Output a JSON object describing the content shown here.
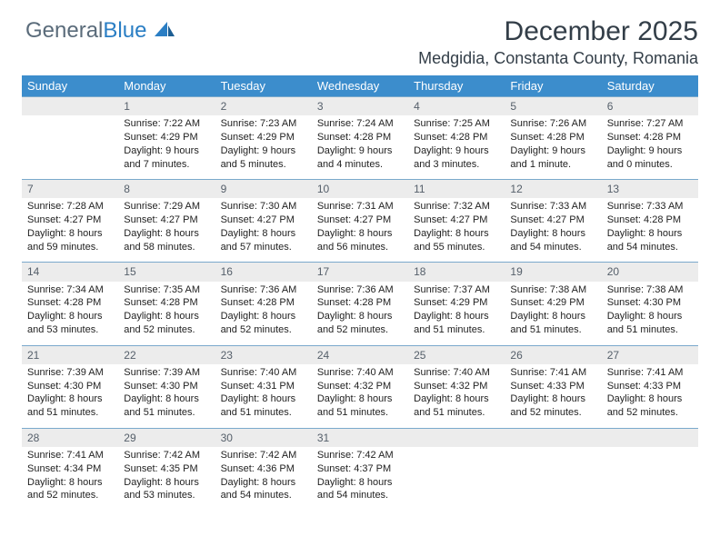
{
  "brand": {
    "part1": "General",
    "part2": "Blue"
  },
  "title": "December 2025",
  "location": "Medgidia, Constanta County, Romania",
  "weekdays": [
    "Sunday",
    "Monday",
    "Tuesday",
    "Wednesday",
    "Thursday",
    "Friday",
    "Saturday"
  ],
  "colors": {
    "header_bg": "#3c8dcc",
    "header_fg": "#ffffff",
    "daynum_bg": "#ececec",
    "daynum_fg": "#555f6a",
    "rule": "#7aa9cc",
    "text": "#222222",
    "title_fg": "#333e48"
  },
  "weeks": [
    [
      {
        "n": "",
        "sr": "",
        "ss": "",
        "dl": ""
      },
      {
        "n": "1",
        "sr": "7:22 AM",
        "ss": "4:29 PM",
        "dl": "9 hours and 7 minutes."
      },
      {
        "n": "2",
        "sr": "7:23 AM",
        "ss": "4:29 PM",
        "dl": "9 hours and 5 minutes."
      },
      {
        "n": "3",
        "sr": "7:24 AM",
        "ss": "4:28 PM",
        "dl": "9 hours and 4 minutes."
      },
      {
        "n": "4",
        "sr": "7:25 AM",
        "ss": "4:28 PM",
        "dl": "9 hours and 3 minutes."
      },
      {
        "n": "5",
        "sr": "7:26 AM",
        "ss": "4:28 PM",
        "dl": "9 hours and 1 minute."
      },
      {
        "n": "6",
        "sr": "7:27 AM",
        "ss": "4:28 PM",
        "dl": "9 hours and 0 minutes."
      }
    ],
    [
      {
        "n": "7",
        "sr": "7:28 AM",
        "ss": "4:27 PM",
        "dl": "8 hours and 59 minutes."
      },
      {
        "n": "8",
        "sr": "7:29 AM",
        "ss": "4:27 PM",
        "dl": "8 hours and 58 minutes."
      },
      {
        "n": "9",
        "sr": "7:30 AM",
        "ss": "4:27 PM",
        "dl": "8 hours and 57 minutes."
      },
      {
        "n": "10",
        "sr": "7:31 AM",
        "ss": "4:27 PM",
        "dl": "8 hours and 56 minutes."
      },
      {
        "n": "11",
        "sr": "7:32 AM",
        "ss": "4:27 PM",
        "dl": "8 hours and 55 minutes."
      },
      {
        "n": "12",
        "sr": "7:33 AM",
        "ss": "4:27 PM",
        "dl": "8 hours and 54 minutes."
      },
      {
        "n": "13",
        "sr": "7:33 AM",
        "ss": "4:28 PM",
        "dl": "8 hours and 54 minutes."
      }
    ],
    [
      {
        "n": "14",
        "sr": "7:34 AM",
        "ss": "4:28 PM",
        "dl": "8 hours and 53 minutes."
      },
      {
        "n": "15",
        "sr": "7:35 AM",
        "ss": "4:28 PM",
        "dl": "8 hours and 52 minutes."
      },
      {
        "n": "16",
        "sr": "7:36 AM",
        "ss": "4:28 PM",
        "dl": "8 hours and 52 minutes."
      },
      {
        "n": "17",
        "sr": "7:36 AM",
        "ss": "4:28 PM",
        "dl": "8 hours and 52 minutes."
      },
      {
        "n": "18",
        "sr": "7:37 AM",
        "ss": "4:29 PM",
        "dl": "8 hours and 51 minutes."
      },
      {
        "n": "19",
        "sr": "7:38 AM",
        "ss": "4:29 PM",
        "dl": "8 hours and 51 minutes."
      },
      {
        "n": "20",
        "sr": "7:38 AM",
        "ss": "4:30 PM",
        "dl": "8 hours and 51 minutes."
      }
    ],
    [
      {
        "n": "21",
        "sr": "7:39 AM",
        "ss": "4:30 PM",
        "dl": "8 hours and 51 minutes."
      },
      {
        "n": "22",
        "sr": "7:39 AM",
        "ss": "4:30 PM",
        "dl": "8 hours and 51 minutes."
      },
      {
        "n": "23",
        "sr": "7:40 AM",
        "ss": "4:31 PM",
        "dl": "8 hours and 51 minutes."
      },
      {
        "n": "24",
        "sr": "7:40 AM",
        "ss": "4:32 PM",
        "dl": "8 hours and 51 minutes."
      },
      {
        "n": "25",
        "sr": "7:40 AM",
        "ss": "4:32 PM",
        "dl": "8 hours and 51 minutes."
      },
      {
        "n": "26",
        "sr": "7:41 AM",
        "ss": "4:33 PM",
        "dl": "8 hours and 52 minutes."
      },
      {
        "n": "27",
        "sr": "7:41 AM",
        "ss": "4:33 PM",
        "dl": "8 hours and 52 minutes."
      }
    ],
    [
      {
        "n": "28",
        "sr": "7:41 AM",
        "ss": "4:34 PM",
        "dl": "8 hours and 52 minutes."
      },
      {
        "n": "29",
        "sr": "7:42 AM",
        "ss": "4:35 PM",
        "dl": "8 hours and 53 minutes."
      },
      {
        "n": "30",
        "sr": "7:42 AM",
        "ss": "4:36 PM",
        "dl": "8 hours and 54 minutes."
      },
      {
        "n": "31",
        "sr": "7:42 AM",
        "ss": "4:37 PM",
        "dl": "8 hours and 54 minutes."
      },
      {
        "n": "",
        "sr": "",
        "ss": "",
        "dl": ""
      },
      {
        "n": "",
        "sr": "",
        "ss": "",
        "dl": ""
      },
      {
        "n": "",
        "sr": "",
        "ss": "",
        "dl": ""
      }
    ]
  ],
  "labels": {
    "sunrise": "Sunrise:",
    "sunset": "Sunset:",
    "daylight": "Daylight:"
  }
}
